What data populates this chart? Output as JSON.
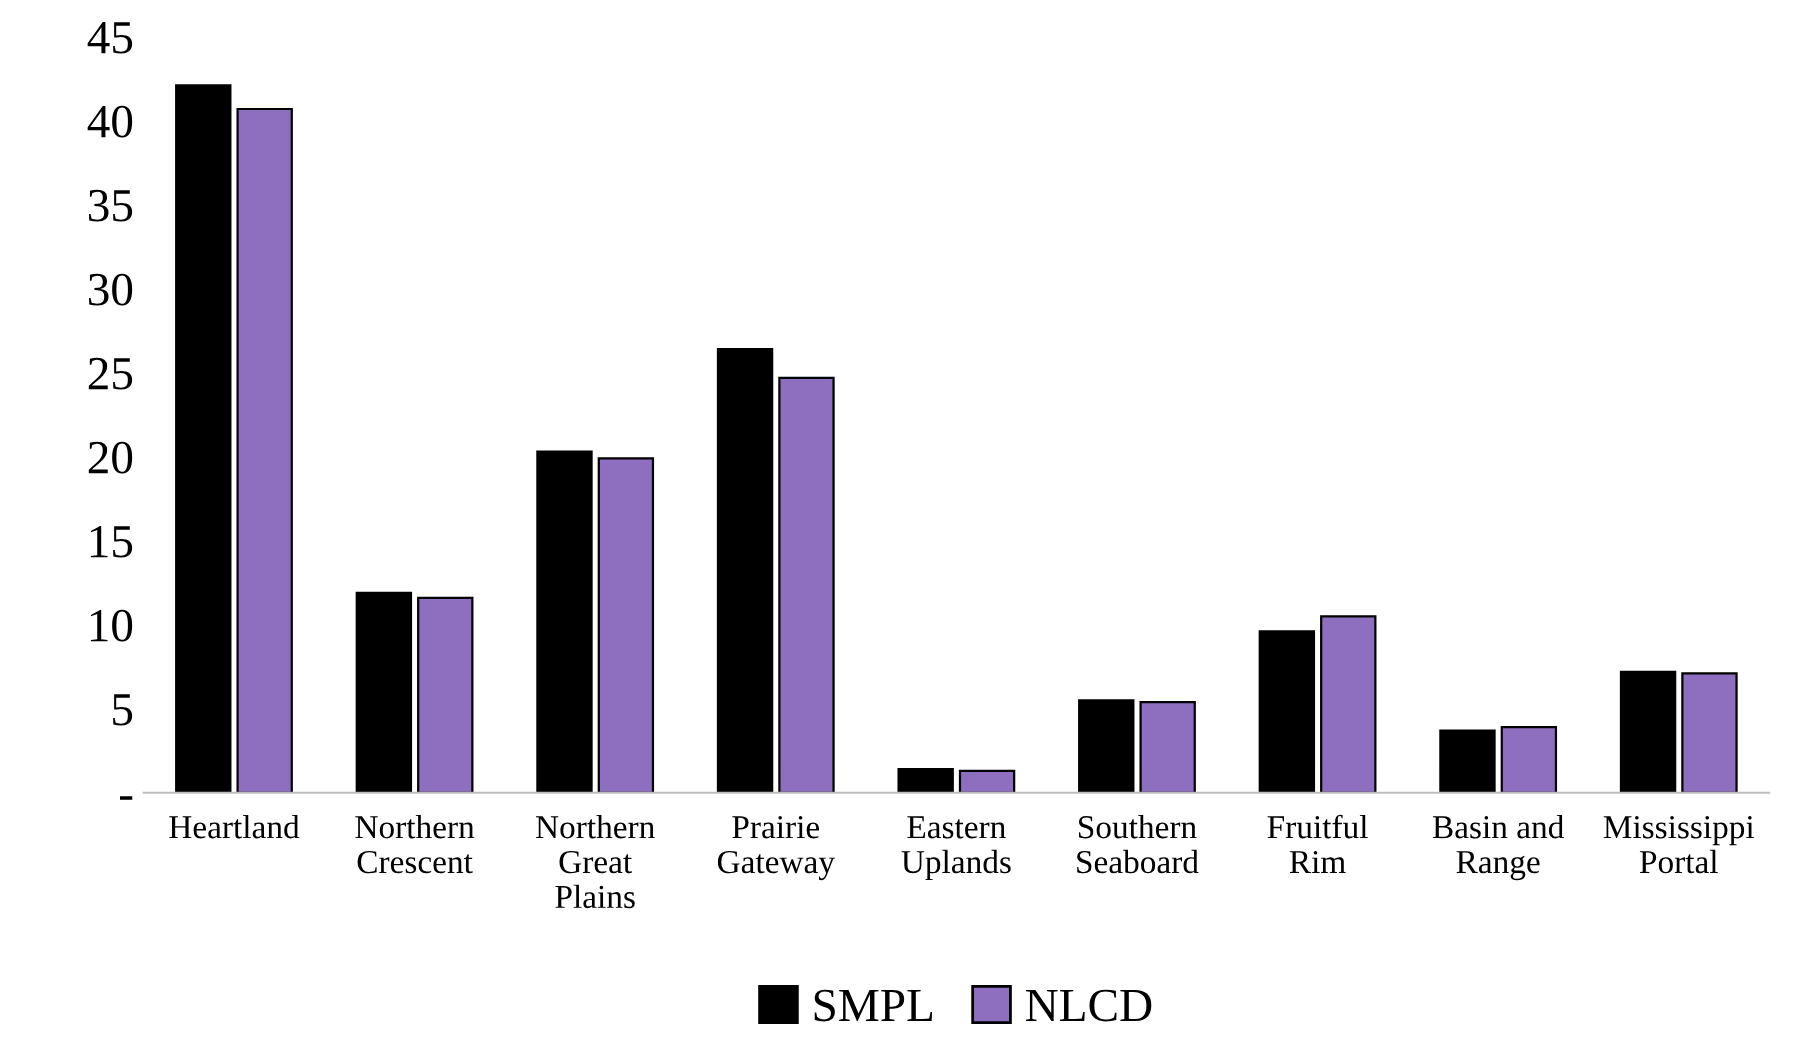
{
  "chart_data": {
    "type": "bar",
    "categories": [
      "Heartland",
      "Northern Crescent",
      "Northern Great Plains",
      "Prairie Gateway",
      "Eastern Uplands",
      "Southern Seaboard",
      "Fruitful Rim",
      "Basin and Range",
      "Mississippi Portal"
    ],
    "series": [
      {
        "name": "SMPL",
        "color": "#000000",
        "values": [
          42.1,
          11.9,
          20.3,
          26.4,
          1.4,
          5.5,
          9.6,
          3.7,
          7.2
        ]
      },
      {
        "name": "NLCD",
        "color": "#8e6fbf",
        "values": [
          40.7,
          11.6,
          19.9,
          24.7,
          1.3,
          5.4,
          10.5,
          3.9,
          7.1
        ]
      }
    ],
    "ylim": [
      0,
      45
    ],
    "yticks": [
      {
        "value": 0,
        "label": "-"
      },
      5,
      10,
      15,
      20,
      25,
      30,
      35,
      40,
      45
    ],
    "grid": false,
    "legend": "bottom"
  }
}
